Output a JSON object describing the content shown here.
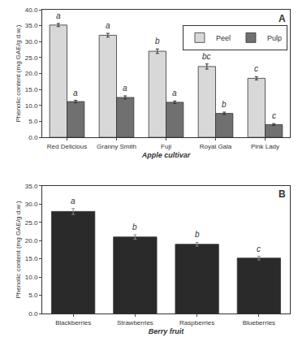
{
  "chart_data": [
    {
      "type": "bar",
      "panel_label": "A",
      "xlabel": "Apple cultivar",
      "ylabel": "Phenolic content (mg GAE/g d.w.)",
      "categories": [
        "Red Delicious",
        "Granny Smith",
        "Fuji",
        "Royal Gala",
        "Pink Lady"
      ],
      "series": [
        {
          "name": "Peel",
          "color": "#d8d8d8",
          "values": [
            35.2,
            32.0,
            27.0,
            22.2,
            18.5
          ],
          "errors": [
            0.5,
            0.6,
            0.7,
            0.8,
            0.5
          ],
          "letters": [
            "a",
            "a",
            "b",
            "bc",
            "c"
          ]
        },
        {
          "name": "Pulp",
          "color": "#707070",
          "values": [
            11.2,
            12.5,
            11.0,
            7.5,
            4.0
          ],
          "errors": [
            0.4,
            0.5,
            0.4,
            0.4,
            0.3
          ],
          "letters": [
            "a",
            "a",
            "a",
            "b",
            "c"
          ]
        }
      ],
      "ylim": [
        0,
        40
      ],
      "yticks": [
        {
          "value": 0,
          "label": "0.0"
        },
        {
          "value": 5,
          "label": "5.0"
        },
        {
          "value": 10,
          "label": "10.0"
        },
        {
          "value": 15,
          "label": "15.0"
        },
        {
          "value": 20,
          "label": "20.0"
        },
        {
          "value": 25,
          "label": "25.0"
        },
        {
          "value": 30,
          "label": "30.0"
        },
        {
          "value": 35,
          "label": "35.0"
        },
        {
          "value": 40,
          "label": "40.0"
        }
      ],
      "grid": false,
      "legend": "upper right"
    },
    {
      "type": "bar",
      "panel_label": "B",
      "xlabel": "Berry fruit",
      "ylabel": "Phenolic content (mg GAE/g d.w.)",
      "categories": [
        "Blackberries",
        "Strawberries",
        "Raspberries",
        "Blueberries"
      ],
      "values": [
        28.0,
        21.0,
        19.0,
        15.2
      ],
      "errors": [
        0.8,
        0.6,
        0.5,
        0.5
      ],
      "letters": [
        "a",
        "b",
        "b",
        "c"
      ],
      "color": "#2a2a2a",
      "ylim": [
        0,
        35
      ],
      "yticks": [
        {
          "value": 0,
          "label": "0.0"
        },
        {
          "value": 5,
          "label": "5.0"
        },
        {
          "value": 10,
          "label": "10.0"
        },
        {
          "value": 15,
          "label": "15.0"
        },
        {
          "value": 20,
          "label": "20.0"
        },
        {
          "value": 25,
          "label": "25.0"
        },
        {
          "value": 30,
          "label": "30.0"
        },
        {
          "value": 35,
          "label": "35.0"
        }
      ],
      "grid": false
    }
  ]
}
